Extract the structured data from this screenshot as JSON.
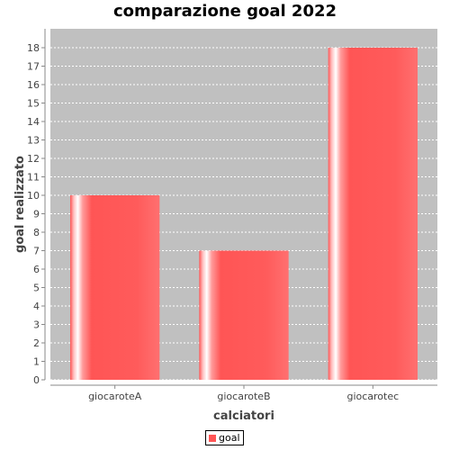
{
  "chart_data": {
    "type": "bar",
    "title": "comparazione goal 2022",
    "xlabel": "calciatori",
    "ylabel": "goal realizzato",
    "categories": [
      "giocaroteA",
      "giocaroteB",
      "giocarotec"
    ],
    "series": [
      {
        "name": "goal",
        "values": [
          10,
          7,
          18
        ]
      }
    ],
    "ylim": [
      0,
      18
    ],
    "yticks": [
      0,
      1,
      2,
      3,
      4,
      5,
      6,
      7,
      8,
      9,
      10,
      11,
      12,
      13,
      14,
      15,
      16,
      17,
      18
    ],
    "grid": true,
    "legend_position": "bottom",
    "colors": {
      "bar": "#ff5555",
      "plot_background": "#c0c0c0",
      "gridline": "#ffffff"
    }
  }
}
